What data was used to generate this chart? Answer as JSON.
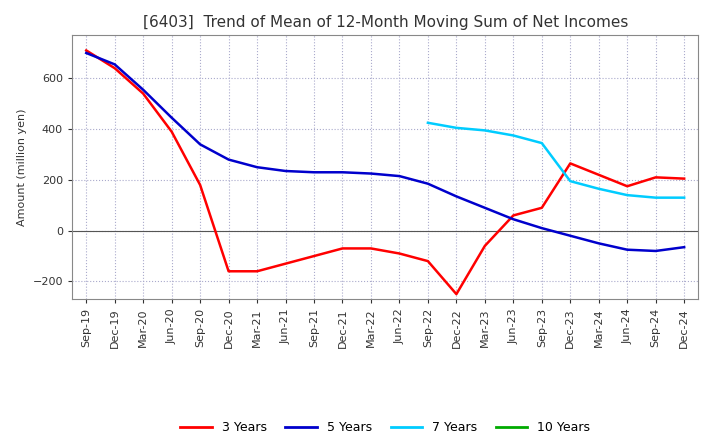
{
  "title": "[6403]  Trend of Mean of 12-Month Moving Sum of Net Incomes",
  "ylabel": "Amount (million yen)",
  "title_color": "#333333",
  "background_color": "#ffffff",
  "grid_color": "#aaaacc",
  "ylim": [
    -270,
    770
  ],
  "yticks": [
    -200,
    0,
    200,
    400,
    600
  ],
  "x_labels": [
    "Sep-19",
    "Dec-19",
    "Mar-20",
    "Jun-20",
    "Sep-20",
    "Dec-20",
    "Mar-21",
    "Jun-21",
    "Sep-21",
    "Dec-21",
    "Mar-22",
    "Jun-22",
    "Sep-22",
    "Dec-22",
    "Mar-23",
    "Jun-23",
    "Sep-23",
    "Dec-23",
    "Mar-24",
    "Jun-24",
    "Sep-24",
    "Dec-24"
  ],
  "series": {
    "3 Years": {
      "color": "#ff0000",
      "data": [
        710,
        640,
        540,
        390,
        180,
        -160,
        -160,
        -130,
        -100,
        -70,
        -70,
        -90,
        -120,
        -250,
        -60,
        60,
        90,
        265,
        220,
        175,
        210,
        205
      ]
    },
    "5 Years": {
      "color": "#0000cc",
      "data": [
        700,
        655,
        555,
        445,
        340,
        280,
        250,
        235,
        230,
        230,
        225,
        215,
        185,
        135,
        90,
        45,
        10,
        -20,
        -50,
        -75,
        -80,
        -65
      ]
    },
    "7 Years": {
      "color": "#00ccff",
      "data": [
        null,
        null,
        null,
        null,
        null,
        null,
        null,
        null,
        null,
        null,
        null,
        null,
        425,
        405,
        395,
        375,
        345,
        195,
        165,
        140,
        130,
        130
      ]
    },
    "10 Years": {
      "color": "#00aa00",
      "data": [
        null,
        null,
        null,
        null,
        null,
        null,
        null,
        null,
        null,
        null,
        null,
        null,
        null,
        null,
        null,
        null,
        null,
        null,
        null,
        null,
        null,
        null
      ]
    }
  },
  "legend_items": [
    "3 Years",
    "5 Years",
    "7 Years",
    "10 Years"
  ],
  "legend_colors": [
    "#ff0000",
    "#0000cc",
    "#00ccff",
    "#00aa00"
  ]
}
